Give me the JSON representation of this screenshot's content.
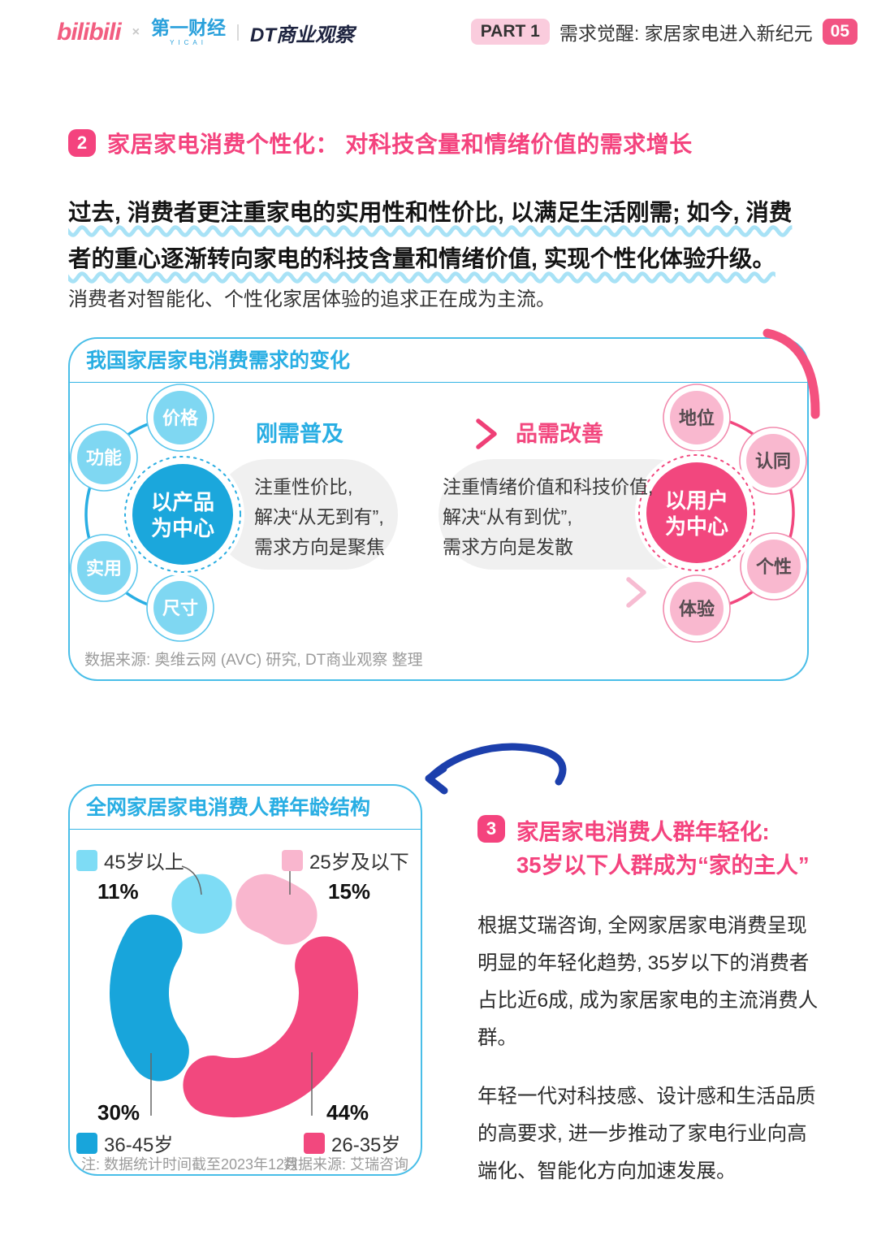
{
  "header": {
    "logo_bilibili": "bilibili",
    "logo_times": "×",
    "logo_yicai": "第一财经",
    "logo_yicai_sub": "YICAI",
    "logo_dt": "DT商业观察",
    "part_badge": "PART 1",
    "part_title": "需求觉醒: 家居家电进入新纪元",
    "page_number": "05"
  },
  "section2": {
    "badge": "2",
    "title": "家居家电消费个性化： 对科技含量和情绪价值的需求增长",
    "highlight_paragraph": "过去, 消费者更注重家电的实用性和性价比, 以满足生活刚需; 如今, 消费者的重心逐渐转向家电的科技含量和情绪价值, 实现个性化体验升级。",
    "paragraph": "消费者对智能化、个性化家居体验的追求正在成为主流。"
  },
  "diagram": {
    "title": "我国家居家电消费需求的变化",
    "left": {
      "center_line1": "以产品",
      "center_line2": "为中心",
      "satellites": [
        "价格",
        "功能",
        "实用",
        "尺寸"
      ],
      "stage_label": "刚需普及",
      "desc_lines": [
        "注重性价比,",
        "解决“从无到有”,",
        "需求方向是聚焦"
      ]
    },
    "right": {
      "center_line1": "以用户",
      "center_line2": "为中心",
      "satellites": [
        "地位",
        "认同",
        "个性",
        "体验"
      ],
      "stage_label": "品需改善",
      "desc_lines": [
        "注重情绪价值和科技价值,",
        "解决“从有到优”,",
        "需求方向是发散"
      ]
    },
    "source": "数据来源: 奥维云网 (AVC) 研究, DT商业观察 整理"
  },
  "chart_data": {
    "type": "pie",
    "donut": true,
    "title": "全网家居家电消费人群年龄结构",
    "start_angle_deg": 0,
    "direction": "clockwise",
    "slices": [
      {
        "label": "25岁及以下",
        "value": 15,
        "pct": "15%",
        "color": "#F9B6CE"
      },
      {
        "label": "26-35岁",
        "value": 44,
        "pct": "44%",
        "color": "#F2487E"
      },
      {
        "label": "36-45岁",
        "value": 30,
        "pct": "30%",
        "color": "#18A5DB"
      },
      {
        "label": "45岁以上",
        "value": 11,
        "pct": "11%",
        "color": "#7EDCF5"
      }
    ],
    "note": "注: 数据统计时间截至2023年12月",
    "source": "数据来源: 艾瑞咨询"
  },
  "section3": {
    "badge": "3",
    "title_line1": "家居家电消费人群年轻化:",
    "title_line2": "35岁以下人群成为“家的主人”",
    "paragraph1": "根据艾瑞咨询, 全网家居家电消费呈现明显的年轻化趋势, 35岁以下的消费者占比近6成, 成为家居家电的主流消费人群。",
    "paragraph2": "年轻一代对科技感、设计感和生活品质的高要求, 进一步推动了家电行业向高端化、智能化方向加速发展。"
  },
  "colors": {
    "accent_pink": "#F2477E",
    "accent_blue": "#29AEE3",
    "box_border_blue": "#49BEE8",
    "underline_blue": "#A8E2F6",
    "handdrawn_arrow_navy": "#1C3FAC",
    "bilibili_pink": "#F25D80",
    "yicai_blue": "#29A0DB",
    "dt_navy": "#1E2440"
  }
}
